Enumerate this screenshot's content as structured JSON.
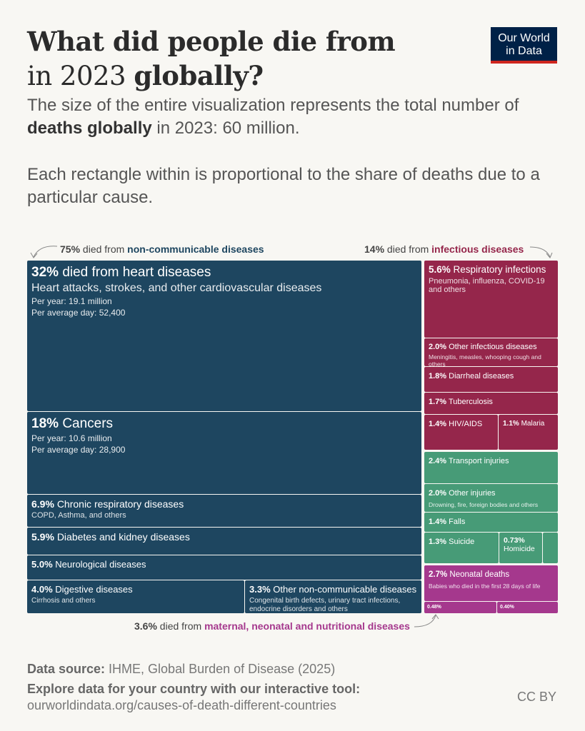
{
  "header": {
    "title_line1": "What did people die from",
    "title_line2_pre": "in 2023 ",
    "title_line2_bold": "globally?",
    "subtitle1_pre": "The size of the entire visualization represents the total number of ",
    "subtitle1_bold": "deaths globally",
    "subtitle1_post": " in 2023: 60 million.",
    "subtitle2": "Each rectangle within is proportional to the share of deaths due to a particular cause.",
    "logo_line1": "Our World",
    "logo_line2": "in Data"
  },
  "annotations": {
    "ncd_pct": "75%",
    "ncd_mid": " died from ",
    "ncd_label": "non-communicable diseases",
    "inf_pct": "14%",
    "inf_mid": " died from ",
    "inf_label": "infectious diseases",
    "mat_pct": "3.6%",
    "mat_mid": " died from ",
    "mat_label": "maternal, neonatal and nutritional diseases"
  },
  "colors": {
    "ncd": "#1e4660",
    "infectious": "#95264b",
    "injuries": "#479b77",
    "maternal": "#a5388d"
  },
  "chart_data": {
    "type": "treemap",
    "total_deaths": "60 million",
    "year": 2023,
    "items": [
      {
        "group": "non-communicable",
        "pct": "32%",
        "label": "died from heart diseases",
        "desc": "Heart attacks, strokes, and other cardiovascular diseases",
        "per_year": "Per year: 19.1 million",
        "per_day": "Per average day: 52,400",
        "value": 32
      },
      {
        "group": "non-communicable",
        "pct": "18%",
        "label": "Cancers",
        "per_year": "Per year: 10.6 million",
        "per_day": "Per average day: 28,900",
        "value": 18
      },
      {
        "group": "non-communicable",
        "pct": "6.9%",
        "label": "Chronic respiratory diseases",
        "desc": "COPD, Asthma, and others",
        "value": 6.9
      },
      {
        "group": "non-communicable",
        "pct": "5.9%",
        "label": "Diabetes and kidney diseases",
        "value": 5.9
      },
      {
        "group": "non-communicable",
        "pct": "5.0%",
        "label": "Neurological diseases",
        "value": 5.0
      },
      {
        "group": "non-communicable",
        "pct": "4.0%",
        "label": "Digestive diseases",
        "desc": "Cirrhosis and others",
        "value": 4.0
      },
      {
        "group": "non-communicable",
        "pct": "3.3%",
        "label": "Other non-communicable diseases",
        "desc": "Congenital birth defects, urinary tract infections, endocrine disorders and others",
        "value": 3.3
      },
      {
        "group": "infectious",
        "pct": "5.6%",
        "label": "Respiratory infections",
        "desc": "Pneumonia, influenza, COVID-19 and others",
        "value": 5.6
      },
      {
        "group": "infectious",
        "pct": "2.0%",
        "label": "Other infectious diseases",
        "desc": "Meningitis, measles, whooping cough and others",
        "value": 2.0
      },
      {
        "group": "infectious",
        "pct": "1.8%",
        "label": "Diarrheal diseases",
        "value": 1.8
      },
      {
        "group": "infectious",
        "pct": "1.7%",
        "label": "Tuberculosis",
        "value": 1.7
      },
      {
        "group": "infectious",
        "pct": "1.4%",
        "label": "HIV/AIDS",
        "value": 1.4
      },
      {
        "group": "infectious",
        "pct": "1.1%",
        "label": "Malaria",
        "value": 1.1
      },
      {
        "group": "injuries",
        "pct": "2.4%",
        "label": "Transport injuries",
        "value": 2.4
      },
      {
        "group": "injuries",
        "pct": "2.0%",
        "label": "Other injuries",
        "desc": "Drowning, fire, foreign bodies and others",
        "value": 2.0
      },
      {
        "group": "injuries",
        "pct": "1.4%",
        "label": "Falls",
        "value": 1.4
      },
      {
        "group": "injuries",
        "pct": "1.3%",
        "label": "Suicide",
        "value": 1.3
      },
      {
        "group": "injuries",
        "pct": "0.73%",
        "label": "Homicide",
        "value": 0.73
      },
      {
        "group": "maternal",
        "pct": "2.7%",
        "label": "Neonatal deaths",
        "desc": "Babies who died in the first 28 days of life",
        "value": 2.7
      },
      {
        "group": "maternal",
        "pct": "0.48%",
        "label": "",
        "value": 0.48
      },
      {
        "group": "maternal",
        "pct": "0.40%",
        "label": "",
        "value": 0.4
      }
    ]
  },
  "footer": {
    "source_label": "Data source:",
    "source": " IHME, Global Burden of Disease (2025)",
    "explore": "Explore data for your country with our interactive tool:",
    "url": "ourworldindata.org/causes-of-death-different-countries",
    "license": "CC BY"
  }
}
